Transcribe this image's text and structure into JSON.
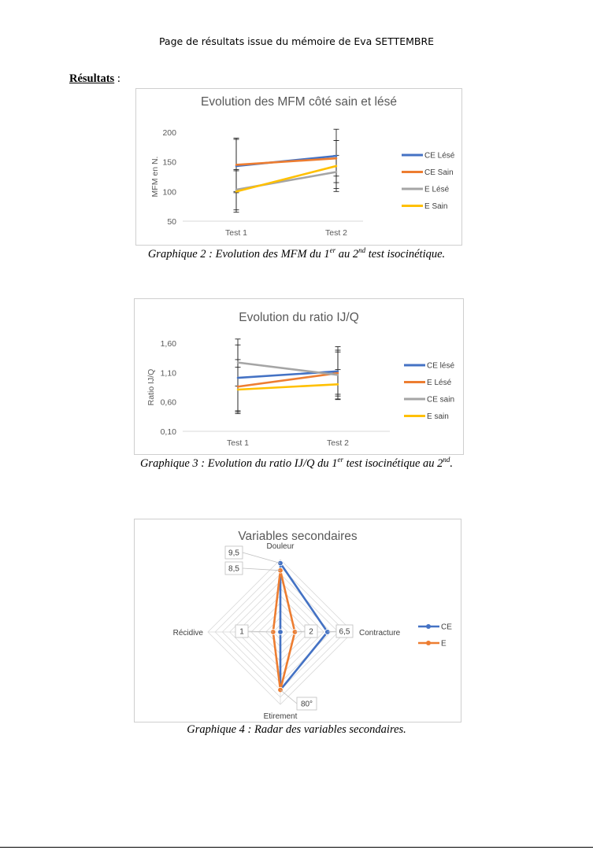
{
  "page": {
    "header": "Page de résultats issue du mémoire de Eva SETTEMBRE",
    "section_label": "Résultats",
    "section_colon": " :"
  },
  "colors": {
    "blue": "#4472C4",
    "orange": "#ED7D31",
    "gray": "#A5A5A5",
    "yellow": "#FFC000"
  },
  "captions": {
    "c2": {
      "a": "Graphique 2 : Evolution des MFM du 1",
      "sup1": "er",
      "b": " au 2",
      "sup2": "nd",
      "c": " test isocinétique."
    },
    "c3": {
      "a": "Graphique 3 : Evolution du ratio IJ/Q du 1",
      "sup1": "er",
      "b": " test isocinétique au 2",
      "sup2": "nd",
      "c": "."
    },
    "c4": {
      "a": "Graphique 4 : Radar des variables secondaires."
    }
  },
  "chart_data": [
    {
      "type": "line",
      "title": "Evolution des MFM côté sain et lésé",
      "ylabel": "MFM en N.",
      "xlabel": "",
      "categories": [
        "Test 1",
        "Test 2"
      ],
      "ylim": [
        50,
        200
      ],
      "yticks": [
        50,
        100,
        150,
        200
      ],
      "grid": false,
      "legend_position": "right",
      "series": [
        {
          "name": "CE Lésé",
          "color": "#4472C4",
          "values": [
            143,
            160
          ],
          "err": [
            45,
            45
          ]
        },
        {
          "name": "CE Sain",
          "color": "#ED7D31",
          "values": [
            145,
            156
          ],
          "err": [
            45,
            30
          ]
        },
        {
          "name": "E Lésé",
          "color": "#A5A5A5",
          "values": [
            103,
            133
          ],
          "err": [
            34,
            28
          ]
        },
        {
          "name": "E Sain",
          "color": "#FFC000",
          "values": [
            100,
            143
          ],
          "err": [
            35,
            43
          ]
        }
      ]
    },
    {
      "type": "line",
      "title": "Evolution du ratio IJ/Q",
      "ylabel": "Ratio IJ/Q",
      "xlabel": "",
      "categories": [
        "Test 1",
        "Test 2"
      ],
      "ylim": [
        0.1,
        1.6
      ],
      "yticks": [
        "0,10",
        "0,60",
        "1,10",
        "1,60"
      ],
      "ytick_values": [
        0.1,
        0.6,
        1.1,
        1.6
      ],
      "grid": false,
      "legend_position": "right",
      "series": [
        {
          "name": "CE lésé",
          "color": "#4472C4",
          "values": [
            1.01,
            1.12
          ],
          "err": [
            0.56,
            0.42
          ]
        },
        {
          "name": "E Lésé",
          "color": "#ED7D31",
          "values": [
            0.86,
            1.09
          ],
          "err": [
            0.46,
            0.36
          ]
        },
        {
          "name": "CE sain",
          "color": "#A5A5A5",
          "values": [
            1.27,
            1.06
          ],
          "err": [
            0.4,
            0.42
          ]
        },
        {
          "name": "E sain",
          "color": "#FFC000",
          "values": [
            0.81,
            0.9
          ],
          "err": [
            0.38,
            0.25
          ]
        }
      ]
    },
    {
      "type": "radar",
      "title": "Variables secondaires",
      "axes": [
        "Douleur",
        "Contracture",
        "Etirement",
        "Récidive"
      ],
      "rmax": 10,
      "legend_position": "right",
      "series": [
        {
          "name": "CE",
          "color": "#4472C4",
          "values": [
            9.5,
            6.5,
            8,
            0
          ]
        },
        {
          "name": "E",
          "color": "#ED7D31",
          "values": [
            8.5,
            2,
            8,
            1
          ]
        }
      ],
      "data_labels": [
        "9,5",
        "8,5",
        "6,5",
        "2",
        "1",
        "80°"
      ]
    }
  ]
}
